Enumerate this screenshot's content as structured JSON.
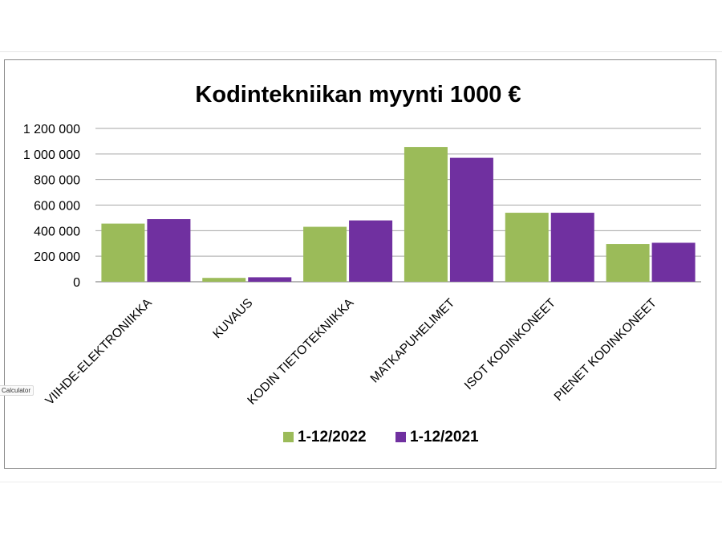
{
  "tooltip": {
    "label": "Calculator"
  },
  "chart_data": {
    "type": "bar",
    "title": "Kodintekniikan myynti 1000 €",
    "xlabel": "",
    "ylabel": "",
    "ylim": [
      0,
      1200000
    ],
    "yticks": [
      0,
      200000,
      400000,
      600000,
      800000,
      1000000,
      1200000
    ],
    "ytick_labels": [
      "0",
      "200 000",
      "400 000",
      "600 000",
      "800 000",
      "1 000 000",
      "1 200 000"
    ],
    "grid": true,
    "legend_position": "bottom",
    "categories": [
      "VIIHDE-ELEKTRONIIKKA",
      "KUVAUS",
      "KODIN TIETOTEKNIIKKA",
      "MATKAPUHELIMET",
      "ISOT KODINKONEET",
      "PIENET KODINKONEET"
    ],
    "series": [
      {
        "name": "1-12/2022",
        "color": "#9bbb59",
        "values": [
          455000,
          30000,
          430000,
          1055000,
          540000,
          295000
        ]
      },
      {
        "name": "1-12/2021",
        "color": "#7030a0",
        "values": [
          490000,
          35000,
          480000,
          970000,
          540000,
          305000
        ]
      }
    ]
  }
}
